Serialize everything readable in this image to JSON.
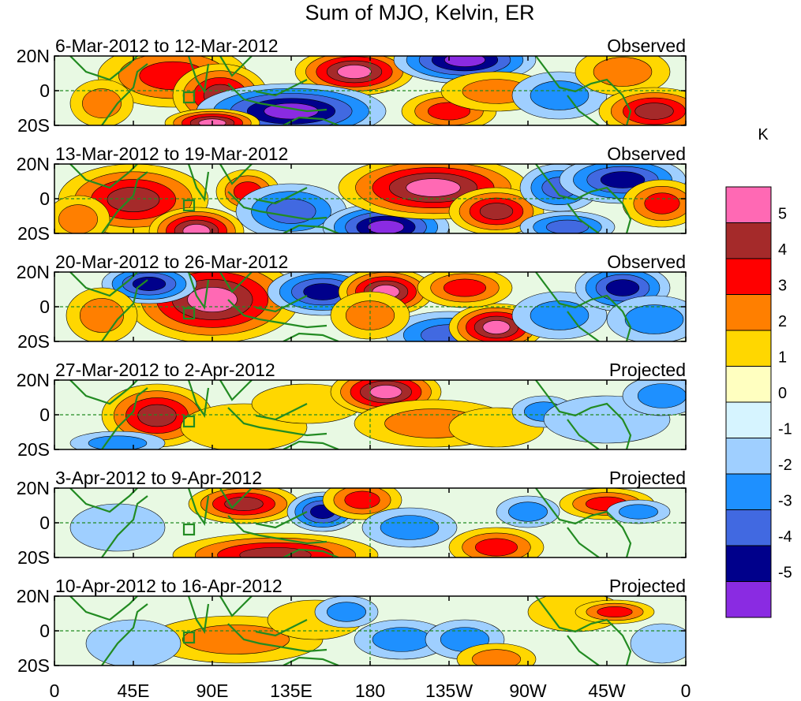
{
  "title": "Sum of MJO, Kelvin, ER",
  "units_label": "K",
  "panels": [
    {
      "date_range": "6-Mar-2012 to 12-Mar-2012",
      "status": "Observed"
    },
    {
      "date_range": "13-Mar-2012 to 19-Mar-2012",
      "status": "Observed"
    },
    {
      "date_range": "20-Mar-2012 to 26-Mar-2012",
      "status": "Observed"
    },
    {
      "date_range": "27-Mar-2012 to 2-Apr-2012",
      "status": "Projected"
    },
    {
      "date_range": "3-Apr-2012 to 9-Apr-2012",
      "status": "Projected"
    },
    {
      "date_range": "10-Apr-2012 to 16-Apr-2012",
      "status": "Projected"
    }
  ],
  "lat_labels": [
    "20N",
    "0",
    "20S"
  ],
  "lon_labels": [
    "0",
    "45E",
    "90E",
    "135E",
    "180",
    "135W",
    "90W",
    "45W",
    "0"
  ],
  "colorbar": {
    "labels": [
      "5",
      "4",
      "3",
      "2",
      "1",
      "0",
      "-1",
      "-2",
      "-3",
      "-4",
      "-5"
    ],
    "colors": [
      "#ff69b4",
      "#a52a2a",
      "#ff0000",
      "#ff7f00",
      "#ffd700",
      "#ffffc0",
      "#d6f4ff",
      "#9fcfff",
      "#1e90ff",
      "#4169e1",
      "#00008b",
      "#8a2be2"
    ]
  },
  "land_color": "#228b22"
}
